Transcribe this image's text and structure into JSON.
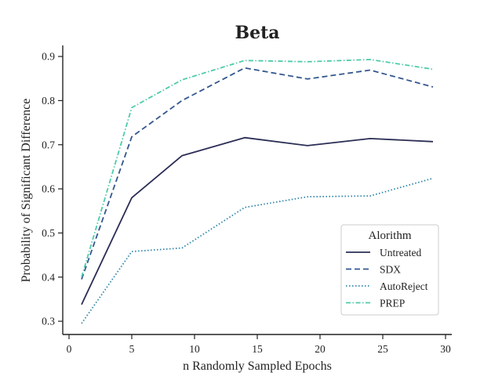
{
  "chart_data": {
    "type": "line",
    "title": "Beta",
    "xlabel": "n Randomly Sampled Epochs",
    "ylabel": "Probability of Significant Difference",
    "xlim": [
      -0.5,
      30.5
    ],
    "ylim": [
      0.27,
      0.925
    ],
    "xticks": [
      0,
      5,
      10,
      15,
      20,
      25,
      30
    ],
    "yticks": [
      0.3,
      0.4,
      0.5,
      0.6,
      0.7,
      0.8,
      0.9
    ],
    "x": [
      1,
      5,
      9,
      14,
      19,
      24,
      29
    ],
    "legend_title": "Alorithm",
    "legend_position": "lower-right",
    "series": [
      {
        "name": "Untreated",
        "values": [
          0.338,
          0.58,
          0.675,
          0.716,
          0.698,
          0.714,
          0.707
        ],
        "color": "#2b2d55",
        "dash": "solid"
      },
      {
        "name": "SDX",
        "values": [
          0.395,
          0.718,
          0.8,
          0.874,
          0.849,
          0.869,
          0.831
        ],
        "color": "#34578e",
        "dash": "dashed"
      },
      {
        "name": "AutoReject",
        "values": [
          0.295,
          0.458,
          0.466,
          0.558,
          0.582,
          0.584,
          0.624
        ],
        "color": "#2f86aa",
        "dash": "dotted"
      },
      {
        "name": "PREP",
        "values": [
          0.4,
          0.784,
          0.847,
          0.891,
          0.888,
          0.893,
          0.871
        ],
        "color": "#4ecbaa",
        "dash": "dashdot"
      }
    ]
  }
}
